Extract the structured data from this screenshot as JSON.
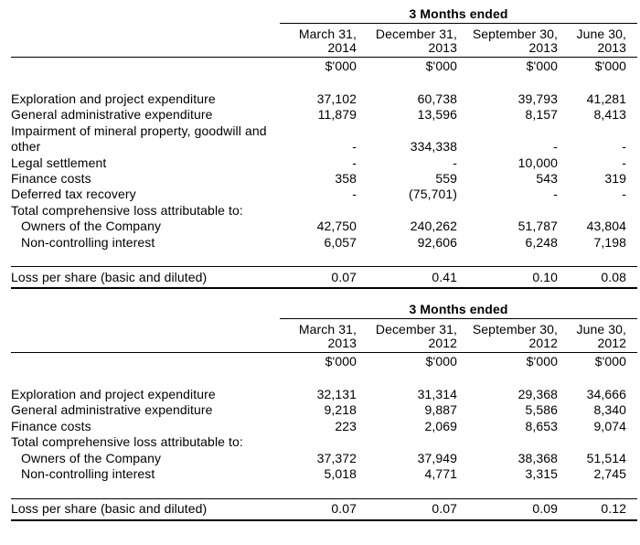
{
  "page": {
    "background": "#ffffff",
    "text_color": "#000000",
    "rule_color": "#000000"
  },
  "tables": [
    {
      "period_header": "3 Months ended",
      "unit_label": "$'000",
      "columns": [
        {
          "date": "March 31,",
          "year": "2014"
        },
        {
          "date": "December 31,",
          "year": "2013"
        },
        {
          "date": "September 30,",
          "year": "2013"
        },
        {
          "date": "June 30,",
          "year": "2013"
        }
      ],
      "rows": [
        {
          "label": "Exploration and project expenditure",
          "indent": false,
          "values": [
            "37,102",
            "60,738",
            "39,793",
            "41,281"
          ]
        },
        {
          "label": "General administrative expenditure",
          "indent": false,
          "values": [
            "11,879",
            "13,596",
            "8,157",
            "8,413"
          ]
        },
        {
          "label": "Impairment of mineral property, goodwill and other",
          "indent": false,
          "values": [
            "-",
            "334,338",
            "-",
            "-"
          ]
        },
        {
          "label": "Legal settlement",
          "indent": false,
          "values": [
            "-",
            "-",
            "10,000",
            "-"
          ]
        },
        {
          "label": "Finance costs",
          "indent": false,
          "values": [
            "358",
            "559",
            "543",
            "319"
          ]
        },
        {
          "label": "Deferred tax recovery",
          "indent": false,
          "values": [
            "-",
            "(75,701)",
            "-",
            "-"
          ]
        },
        {
          "label": "Total comprehensive loss attributable to:",
          "indent": false,
          "values": [
            "",
            "",
            "",
            ""
          ]
        },
        {
          "label": "Owners of the Company",
          "indent": true,
          "values": [
            "42,750",
            "240,262",
            "51,787",
            "43,804"
          ]
        },
        {
          "label": "Non-controlling interest",
          "indent": true,
          "values": [
            "6,057",
            "92,606",
            "6,248",
            "7,198"
          ]
        }
      ],
      "footer_row": {
        "label": "Loss per share (basic and diluted)",
        "values": [
          "0.07",
          "0.41",
          "0.10",
          "0.08"
        ]
      }
    },
    {
      "period_header": "3 Months ended",
      "unit_label": "$'000",
      "columns": [
        {
          "date": "March 31,",
          "year": "2013"
        },
        {
          "date": "December 31,",
          "year": "2012"
        },
        {
          "date": "September 30,",
          "year": "2012"
        },
        {
          "date": "June 30,",
          "year": "2012"
        }
      ],
      "rows": [
        {
          "label": "Exploration and project expenditure",
          "indent": false,
          "values": [
            "32,131",
            "31,314",
            "29,368",
            "34,666"
          ]
        },
        {
          "label": "General administrative expenditure",
          "indent": false,
          "values": [
            "9,218",
            "9,887",
            "5,586",
            "8,340"
          ]
        },
        {
          "label": "Finance costs",
          "indent": false,
          "values": [
            "223",
            "2,069",
            "8,653",
            "9,074"
          ]
        },
        {
          "label": "Total comprehensive loss attributable to:",
          "indent": false,
          "values": [
            "",
            "",
            "",
            ""
          ]
        },
        {
          "label": "Owners of the Company",
          "indent": true,
          "values": [
            "37,372",
            "37,949",
            "38,368",
            "51,514"
          ]
        },
        {
          "label": "Non-controlling interest",
          "indent": true,
          "values": [
            "5,018",
            "4,771",
            "3,315",
            "2,745"
          ]
        }
      ],
      "footer_row": {
        "label": "Loss per share (basic and diluted)",
        "values": [
          "0.07",
          "0.07",
          "0.09",
          "0.12"
        ]
      }
    }
  ]
}
